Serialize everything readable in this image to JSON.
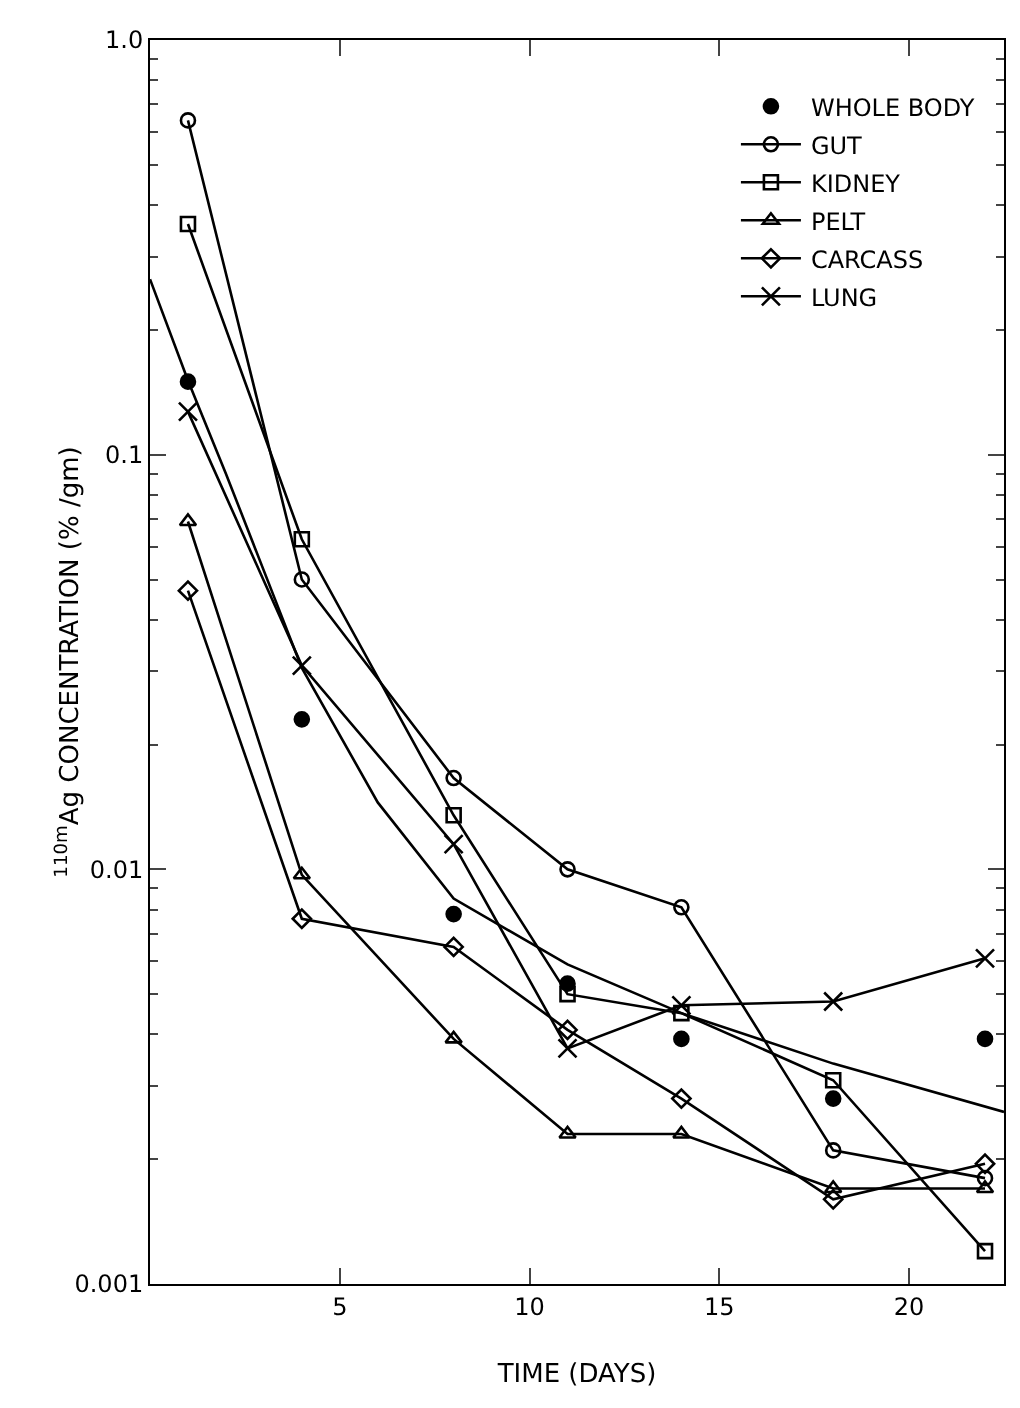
{
  "chart_data": {
    "type": "line",
    "xlabel": "TIME (DAYS)",
    "ylabel": "$^{110m}$Ag CONCENTRATION (% /gm)",
    "x": [
      1,
      4,
      8,
      11,
      14,
      18,
      22
    ],
    "xlim": [
      0,
      22.5
    ],
    "xticks": [
      5,
      10,
      15,
      20
    ],
    "ylim": [
      0.001,
      1
    ],
    "yticks": [
      0.001,
      0.01,
      0.1,
      {
        "value": 1,
        "label": "1.0"
      }
    ],
    "log": "y",
    "grid": false,
    "legend": "top right",
    "series": [
      {
        "name": "WHOLE BODY",
        "type": "scatter",
        "marker": "circle",
        "color": "#000000",
        "values": [
          0.15,
          0.023,
          0.0078,
          0.0053,
          0.0039,
          0.0028,
          0.0039
        ]
      },
      {
        "name": "GUT",
        "marker": "circle",
        "color": "#000000",
        "values": [
          0.64,
          0.05,
          0.0166,
          0.01,
          0.0081,
          0.0021,
          0.0018
        ]
      },
      {
        "name": "KIDNEY",
        "marker": "square",
        "color": "#000000",
        "values": [
          0.36,
          0.0625,
          0.0135,
          0.005,
          0.0045,
          0.0031,
          0.0012
        ]
      },
      {
        "name": "PELT",
        "marker": "triangle",
        "color": "#000000",
        "values": [
          0.069,
          0.0097,
          0.0039,
          0.0023,
          0.0023,
          0.0017,
          0.0017
        ]
      },
      {
        "name": "CARCASS",
        "marker": "diamond",
        "color": "#000000",
        "values": [
          0.047,
          0.0076,
          0.0065,
          0.0041,
          0.0028,
          0.0016,
          0.00195
        ]
      },
      {
        "name": "LUNG",
        "marker": "cross",
        "color": "#000000",
        "values": [
          0.127,
          0.031,
          0.0115,
          0.0037,
          0.0047,
          0.0048,
          0.0061
        ]
      },
      {
        "type": "line",
        "marker": "none",
        "color": "#000000",
        "x": [
          0,
          1,
          2,
          4,
          6,
          8,
          11,
          14,
          18,
          22.5
        ],
        "values": [
          0.265,
          0.151,
          0.09,
          0.0306,
          0.0145,
          0.0085,
          0.0059,
          0.0045,
          0.0034,
          0.0026
        ]
      }
    ]
  }
}
